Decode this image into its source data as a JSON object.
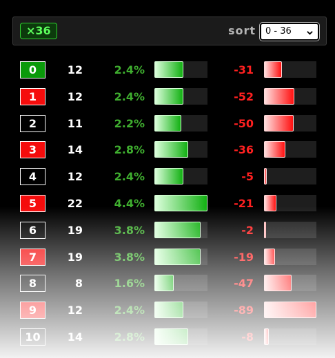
{
  "header": {
    "multiplier_badge": "×36",
    "sort_label": "sort",
    "sort_select_value": "0 - 36"
  },
  "colors": {
    "green_box": "#0a9a0a",
    "red_box": "#f50c0c",
    "black_box": "#000000",
    "percent_text": "#3fae2f",
    "diff_text": "#ff2020"
  },
  "rows": [
    {
      "number": "0",
      "box_color": "green",
      "count": "12",
      "percent": "2.4%",
      "count_fraction": 0.545,
      "diff": "-31",
      "diff_fraction": 0.348
    },
    {
      "number": "1",
      "box_color": "red",
      "count": "12",
      "percent": "2.4%",
      "count_fraction": 0.545,
      "diff": "-52",
      "diff_fraction": 0.584
    },
    {
      "number": "2",
      "box_color": "black",
      "count": "11",
      "percent": "2.2%",
      "count_fraction": 0.5,
      "diff": "-50",
      "diff_fraction": 0.562
    },
    {
      "number": "3",
      "box_color": "red",
      "count": "14",
      "percent": "2.8%",
      "count_fraction": 0.636,
      "diff": "-36",
      "diff_fraction": 0.404
    },
    {
      "number": "4",
      "box_color": "black",
      "count": "12",
      "percent": "2.4%",
      "count_fraction": 0.545,
      "diff": "-5",
      "diff_fraction": 0.056
    },
    {
      "number": "5",
      "box_color": "red",
      "count": "22",
      "percent": "4.4%",
      "count_fraction": 1.0,
      "diff": "-21",
      "diff_fraction": 0.236
    },
    {
      "number": "6",
      "box_color": "black",
      "count": "19",
      "percent": "3.8%",
      "count_fraction": 0.864,
      "diff": "-2",
      "diff_fraction": 0.022
    },
    {
      "number": "7",
      "box_color": "red",
      "count": "19",
      "percent": "3.8%",
      "count_fraction": 0.864,
      "diff": "-19",
      "diff_fraction": 0.213
    },
    {
      "number": "8",
      "box_color": "black",
      "count": "8",
      "percent": "1.6%",
      "count_fraction": 0.364,
      "diff": "-47",
      "diff_fraction": 0.528
    },
    {
      "number": "9",
      "box_color": "red",
      "count": "12",
      "percent": "2.4%",
      "count_fraction": 0.545,
      "diff": "-89",
      "diff_fraction": 1.0
    },
    {
      "number": "10",
      "box_color": "black",
      "count": "14",
      "percent": "2.8%",
      "count_fraction": 0.636,
      "diff": "-8",
      "diff_fraction": 0.09
    }
  ]
}
